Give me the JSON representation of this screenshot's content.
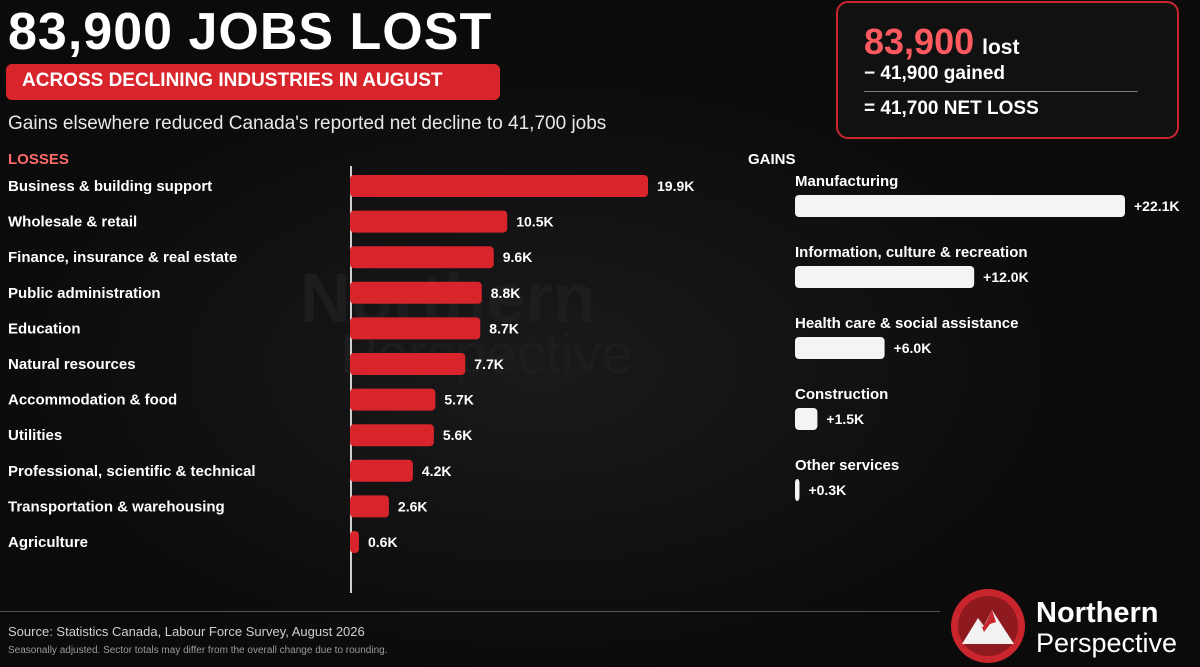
{
  "header": {
    "headline": "83,900 JOBS LOST",
    "subhead": "ACROSS DECLINING INDUSTRIES IN AUGUST",
    "tagline": "Gains elsewhere reduced Canada's reported net decline to 41,700 jobs"
  },
  "summary": {
    "lost_value": "83,900",
    "lost_word": "lost",
    "gained": "− 41,900 gained",
    "net": "= 41,700 NET LOSS"
  },
  "watermark": {
    "line1": "Northern",
    "line2": "Perspective"
  },
  "footer": {
    "source": "Source: Statistics Canada, Labour Force Survey, August 2026",
    "note": "Seasonally adjusted. Sector totals may differ from the overall change due to rounding."
  },
  "logo": {
    "line1": "Northern",
    "line2": "Perspective"
  },
  "colors": {
    "loss_bar": "#d8242b",
    "gain_bar": "#f4f4f4",
    "accent": "#ff5a5f",
    "background": "#0b0b0c"
  },
  "chart_data": [
    {
      "type": "bar",
      "orientation": "horizontal",
      "title": "LOSSES",
      "unit": "K jobs",
      "categories": [
        "Business & building support",
        "Wholesale & retail",
        "Finance, insurance & real estate",
        "Public administration",
        "Education",
        "Natural resources",
        "Accommodation & food",
        "Utilities",
        "Professional, scientific & technical",
        "Transportation & warehousing",
        "Agriculture"
      ],
      "values": [
        19.9,
        10.5,
        9.6,
        8.8,
        8.7,
        7.7,
        5.7,
        5.6,
        4.2,
        2.6,
        0.6
      ],
      "labels": [
        "19.9K",
        "10.5K",
        "9.6K",
        "8.8K",
        "8.7K",
        "7.7K",
        "5.7K",
        "5.6K",
        "4.2K",
        "2.6K",
        "0.6K"
      ]
    },
    {
      "type": "bar",
      "orientation": "horizontal",
      "title": "GAINS",
      "unit": "K jobs",
      "categories": [
        "Manufacturing",
        "Information, culture & recreation",
        "Health care & social assistance",
        "Construction",
        "Other services"
      ],
      "values": [
        22.1,
        12.0,
        6.0,
        1.5,
        0.3
      ],
      "labels": [
        "+22.1K",
        "+12.0K",
        "+6.0K",
        "+1.5K",
        "+0.3K"
      ]
    }
  ]
}
